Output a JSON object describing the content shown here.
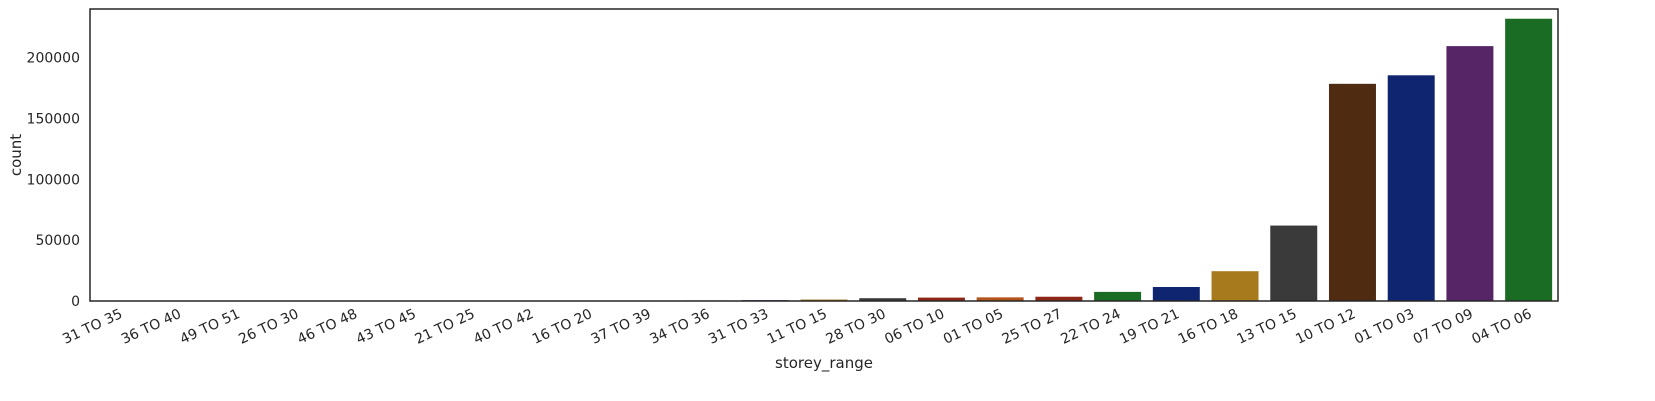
{
  "chart_data": {
    "type": "bar",
    "xlabel": "storey_range",
    "ylabel": "count",
    "ylim": [
      0,
      240000
    ],
    "yticks": [
      0,
      50000,
      100000,
      150000,
      200000
    ],
    "grid": false,
    "categories": [
      "31 TO 35",
      "36 TO 40",
      "49 TO 51",
      "26 TO 30",
      "46 TO 48",
      "43 TO 45",
      "21 TO 25",
      "40 TO 42",
      "16 TO 20",
      "37 TO 39",
      "34 TO 36",
      "31 TO 33",
      "11 TO 15",
      "28 TO 30",
      "06 TO 10",
      "01 TO 05",
      "25 TO 27",
      "22 TO 24",
      "19 TO 21",
      "16 TO 18",
      "13 TO 15",
      "10 TO 12",
      "01 TO 03",
      "07 TO 09",
      "04 TO 06"
    ],
    "values": [
      10,
      30,
      50,
      60,
      80,
      120,
      150,
      200,
      250,
      300,
      450,
      700,
      1200,
      2300,
      2800,
      3000,
      3500,
      7500,
      11500,
      24500,
      62000,
      178500,
      185500,
      209500,
      232000
    ],
    "colors": [
      "#8c2617",
      "#3a3a3a",
      "#23701e",
      "#5e2766",
      "#1c2a6e",
      "#a6761d",
      "#5a2d12",
      "#3a3a3a",
      "#a5621e",
      "#8c2617",
      "#23701e",
      "#1c2a6e",
      "#a6761d",
      "#3a3a3a",
      "#8c2617",
      "#b5541a",
      "#8c2617",
      "#1a6b24",
      "#0f2570",
      "#a77a1e",
      "#3a3a3a",
      "#4f2b12",
      "#0f2570",
      "#562566",
      "#1a6b24"
    ]
  }
}
